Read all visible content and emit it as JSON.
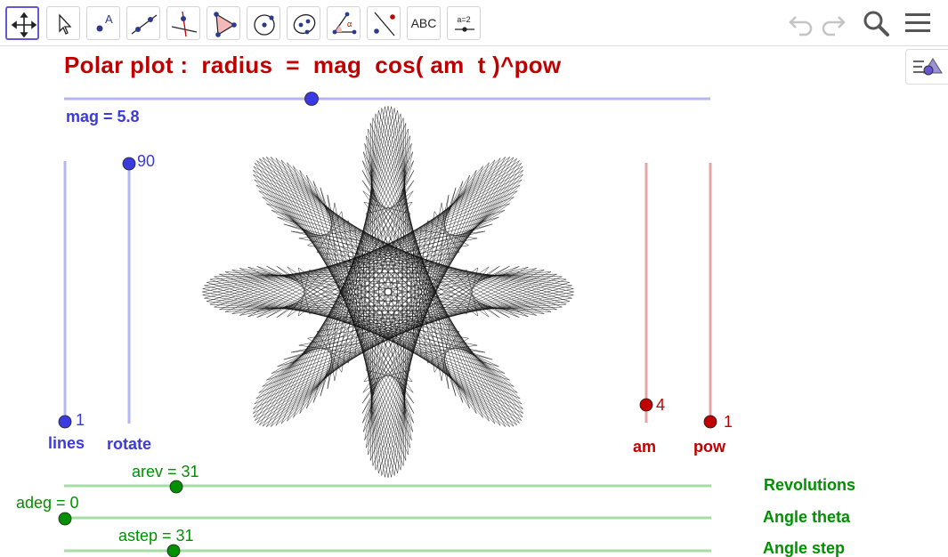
{
  "toolbar": {
    "tools": [
      {
        "name": "move-tool",
        "icon": "move-arrows-icon"
      },
      {
        "name": "select-tool",
        "icon": "pointer-arrow-icon"
      },
      {
        "name": "point-tool",
        "icon": "point-a-icon"
      },
      {
        "name": "line-tool",
        "icon": "line-through-points-icon"
      },
      {
        "name": "perpendicular-tool",
        "icon": "perpendicular-line-icon"
      },
      {
        "name": "polygon-tool",
        "icon": "polygon-icon"
      },
      {
        "name": "circle-center-tool",
        "icon": "circle-center-point-icon"
      },
      {
        "name": "ellipse-tool",
        "icon": "ellipse-icon"
      },
      {
        "name": "angle-tool",
        "icon": "angle-icon"
      },
      {
        "name": "reflect-tool",
        "icon": "reflect-about-line-icon"
      },
      {
        "name": "text-tool",
        "label": "ABC"
      },
      {
        "name": "slider-tool",
        "label": "a = 2"
      }
    ],
    "right_icons": [
      "undo-icon",
      "redo-icon",
      "search-icon",
      "menu-icon"
    ]
  },
  "title": "Polar plot :  radius  =  mag  cos( am  t )^pow",
  "sliders": {
    "mag": {
      "label": "mag = 5.8",
      "value": 5.8,
      "position": 0.38
    },
    "lines": {
      "value_label": "1",
      "name": "lines",
      "position": 0.0
    },
    "rotate": {
      "value_label": "90",
      "name": "rotate",
      "position": 1.0
    },
    "am": {
      "value_label": "4",
      "name": "am",
      "position": 0.1
    },
    "pow": {
      "value_label": "1",
      "name": "pow",
      "position": 0.0
    },
    "arev": {
      "label": "arev = 31",
      "name": "Revolutions",
      "position": 0.17
    },
    "adeg": {
      "label": "adeg = 0",
      "name": "Angle theta",
      "position": 0.0
    },
    "astep": {
      "label": "astep = 31",
      "name": "Angle step",
      "position": 0.17
    }
  },
  "colors": {
    "accent": "#6557d2",
    "blue_slider": "#3a3ae0",
    "blue_track": "#b4b4f6",
    "red_slider": "#c00000",
    "red_track": "#e8a4a4",
    "green_slider": "#009000",
    "green_track": "#a6dca6",
    "title_red": "#c00000"
  },
  "plot": {
    "mag": 5.8,
    "am": 4,
    "pow": 1,
    "rotate": 90,
    "arev": 31,
    "astep": 31
  }
}
